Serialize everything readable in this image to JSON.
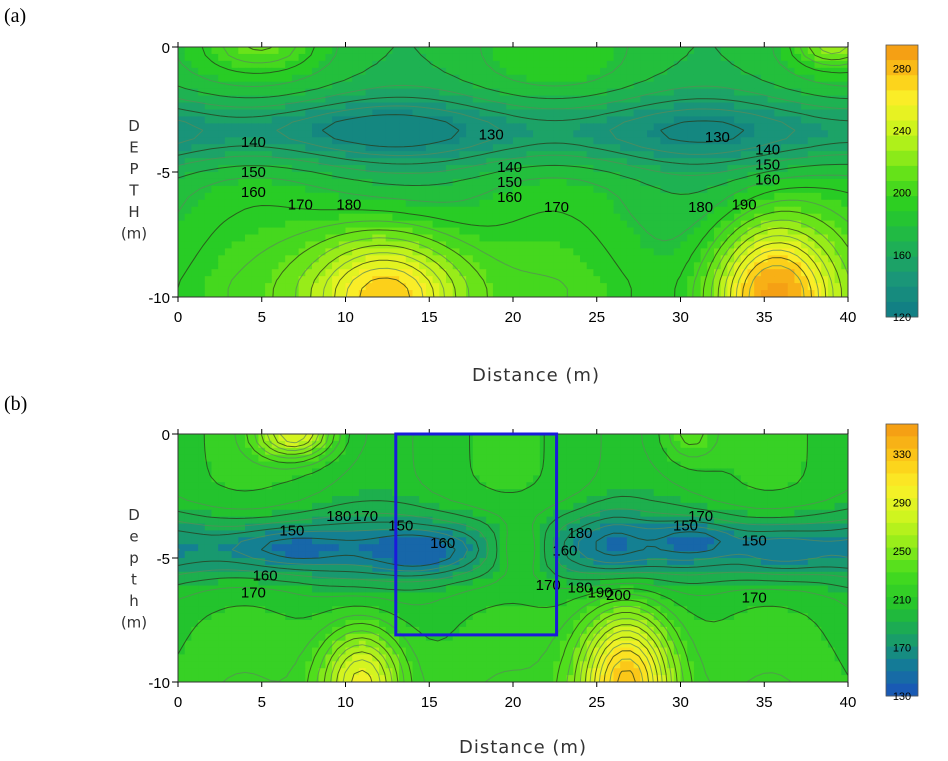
{
  "chart_data": [
    {
      "type": "heatmap",
      "panel_label": "(a)",
      "title": "",
      "xlabel": "Distance (m)",
      "ylabel_letters": [
        "D",
        "E",
        "P",
        "T",
        "H",
        "(m)"
      ],
      "xlim": [
        0,
        40
      ],
      "ylim": [
        -10,
        0
      ],
      "x_ticks": [
        "0",
        "5",
        "10",
        "15",
        "20",
        "25",
        "30",
        "35",
        "40"
      ],
      "y_ticks": [
        "0",
        "-5",
        "-10"
      ],
      "colorbar": {
        "min": 120,
        "max": 295,
        "ticks": [
          "120",
          "160",
          "200",
          "240",
          "280"
        ]
      },
      "contour_labels": [
        {
          "text": "130",
          "x": 18.7,
          "y": -3.7
        },
        {
          "text": "130",
          "x": 32.2,
          "y": -3.8
        },
        {
          "text": "140",
          "x": 4.5,
          "y": -4.0
        },
        {
          "text": "150",
          "x": 4.5,
          "y": -5.2
        },
        {
          "text": "160",
          "x": 4.5,
          "y": -6.0
        },
        {
          "text": "170",
          "x": 7.3,
          "y": -6.5
        },
        {
          "text": "180",
          "x": 10.2,
          "y": -6.5
        },
        {
          "text": "140",
          "x": 19.8,
          "y": -5.0
        },
        {
          "text": "150",
          "x": 19.8,
          "y": -5.6
        },
        {
          "text": "160",
          "x": 19.8,
          "y": -6.2
        },
        {
          "text": "170",
          "x": 22.6,
          "y": -6.6
        },
        {
          "text": "180",
          "x": 31.2,
          "y": -6.6
        },
        {
          "text": "190",
          "x": 33.8,
          "y": -6.5
        },
        {
          "text": "140",
          "x": 35.2,
          "y": -4.3
        },
        {
          "text": "150",
          "x": 35.2,
          "y": -4.9
        },
        {
          "text": "160",
          "x": 35.2,
          "y": -5.5
        }
      ]
    },
    {
      "type": "heatmap",
      "panel_label": "(b)",
      "title": "",
      "xlabel": "Distance (m)",
      "ylabel_letters": [
        "D",
        "e",
        "p",
        "t",
        "h",
        "(m)"
      ],
      "xlim": [
        0,
        40
      ],
      "ylim": [
        -10,
        0
      ],
      "x_ticks": [
        "0",
        "5",
        "10",
        "15",
        "20",
        "25",
        "30",
        "35",
        "40"
      ],
      "y_ticks": [
        "0",
        "-5",
        "-10"
      ],
      "colorbar": {
        "min": 130,
        "max": 355,
        "ticks": [
          "130",
          "170",
          "210",
          "250",
          "290",
          "330"
        ]
      },
      "highlight_box": {
        "x0": 13,
        "x1": 22.6,
        "y0": 0,
        "y1": -8.1,
        "color": "#1a1adc"
      },
      "contour_labels": [
        {
          "text": "150",
          "x": 6.8,
          "y": -4.1
        },
        {
          "text": "180",
          "x": 9.6,
          "y": -3.5
        },
        {
          "text": "170",
          "x": 11.2,
          "y": -3.5
        },
        {
          "text": "150",
          "x": 13.3,
          "y": -3.9
        },
        {
          "text": "160",
          "x": 15.8,
          "y": -4.6
        },
        {
          "text": "160",
          "x": 5.2,
          "y": -5.9
        },
        {
          "text": "170",
          "x": 4.5,
          "y": -6.6
        },
        {
          "text": "180",
          "x": 24.0,
          "y": -4.2
        },
        {
          "text": "160",
          "x": 23.1,
          "y": -4.9
        },
        {
          "text": "170",
          "x": 22.1,
          "y": -6.3
        },
        {
          "text": "180",
          "x": 24.0,
          "y": -6.4
        },
        {
          "text": "190",
          "x": 25.2,
          "y": -6.6
        },
        {
          "text": "200",
          "x": 26.3,
          "y": -6.7
        },
        {
          "text": "150",
          "x": 30.3,
          "y": -3.9
        },
        {
          "text": "170",
          "x": 31.2,
          "y": -3.5
        },
        {
          "text": "150",
          "x": 34.4,
          "y": -4.5
        },
        {
          "text": "170",
          "x": 34.4,
          "y": -6.8
        }
      ]
    }
  ]
}
